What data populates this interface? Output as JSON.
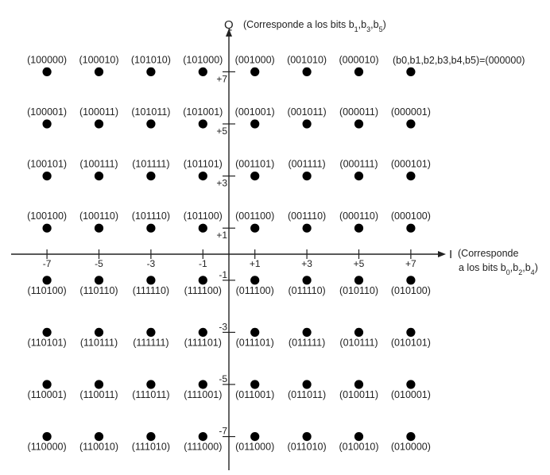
{
  "axes": {
    "q_label": "Q",
    "q_note": "(Corresponde a los bits b1,b3,b5)",
    "i_label": "I",
    "i_note_line1": "(Corresponde",
    "i_note_line2": "a los bits b0,b2,b4)"
  },
  "legend_mapping": "(b0,b1,b2,b3,b4,b5)=(000000)",
  "chart_data": {
    "type": "scatter",
    "x_ticks": [
      -7,
      -5,
      -3,
      -1,
      1,
      3,
      5,
      7
    ],
    "x_tick_labels": [
      "-7",
      "-5",
      "-3",
      "-1",
      "+1",
      "+3",
      "+5",
      "+7"
    ],
    "y_ticks": [
      7,
      5,
      3,
      1,
      -1,
      -3,
      -5,
      -7
    ],
    "y_tick_labels": [
      "+7",
      "+5",
      "+3",
      "+1",
      "-1",
      "-3",
      "-5",
      "-7"
    ],
    "xlim": [
      -8.5,
      8.5
    ],
    "ylim": [
      -8.5,
      8.5
    ],
    "grid": false,
    "rows": [
      {
        "q": 7,
        "codes": [
          "(100000)",
          "(100010)",
          "(101010)",
          "(101000)",
          "(001000)",
          "(001010)",
          "(000010)",
          ""
        ]
      },
      {
        "q": 5,
        "codes": [
          "(100001)",
          "(100011)",
          "(101011)",
          "(101001)",
          "(001001)",
          "(001011)",
          "(000011)",
          "(000001)"
        ]
      },
      {
        "q": 3,
        "codes": [
          "(100101)",
          "(100111)",
          "(101111)",
          "(101101)",
          "(001101)",
          "(001111)",
          "(000111)",
          "(000101)"
        ]
      },
      {
        "q": 1,
        "codes": [
          "(100100)",
          "(100110)",
          "(101110)",
          "(101100)",
          "(001100)",
          "(001110)",
          "(000110)",
          "(000100)"
        ]
      },
      {
        "q": -1,
        "codes": [
          "(110100)",
          "(110110)",
          "(111110)",
          "(111100)",
          "(011100)",
          "(011110)",
          "(010110)",
          "(010100)"
        ]
      },
      {
        "q": -3,
        "codes": [
          "(110101)",
          "(110111)",
          "(111111)",
          "(111101)",
          "(011101)",
          "(011111)",
          "(010111)",
          "(010101)"
        ]
      },
      {
        "q": -5,
        "codes": [
          "(110001)",
          "(110011)",
          "(111011)",
          "(111001)",
          "(011001)",
          "(011011)",
          "(010011)",
          "(010001)"
        ]
      },
      {
        "q": -7,
        "codes": [
          "(110000)",
          "(110010)",
          "(111010)",
          "(111000)",
          "(011000)",
          "(011010)",
          "(010010)",
          "(010000)"
        ]
      }
    ]
  }
}
